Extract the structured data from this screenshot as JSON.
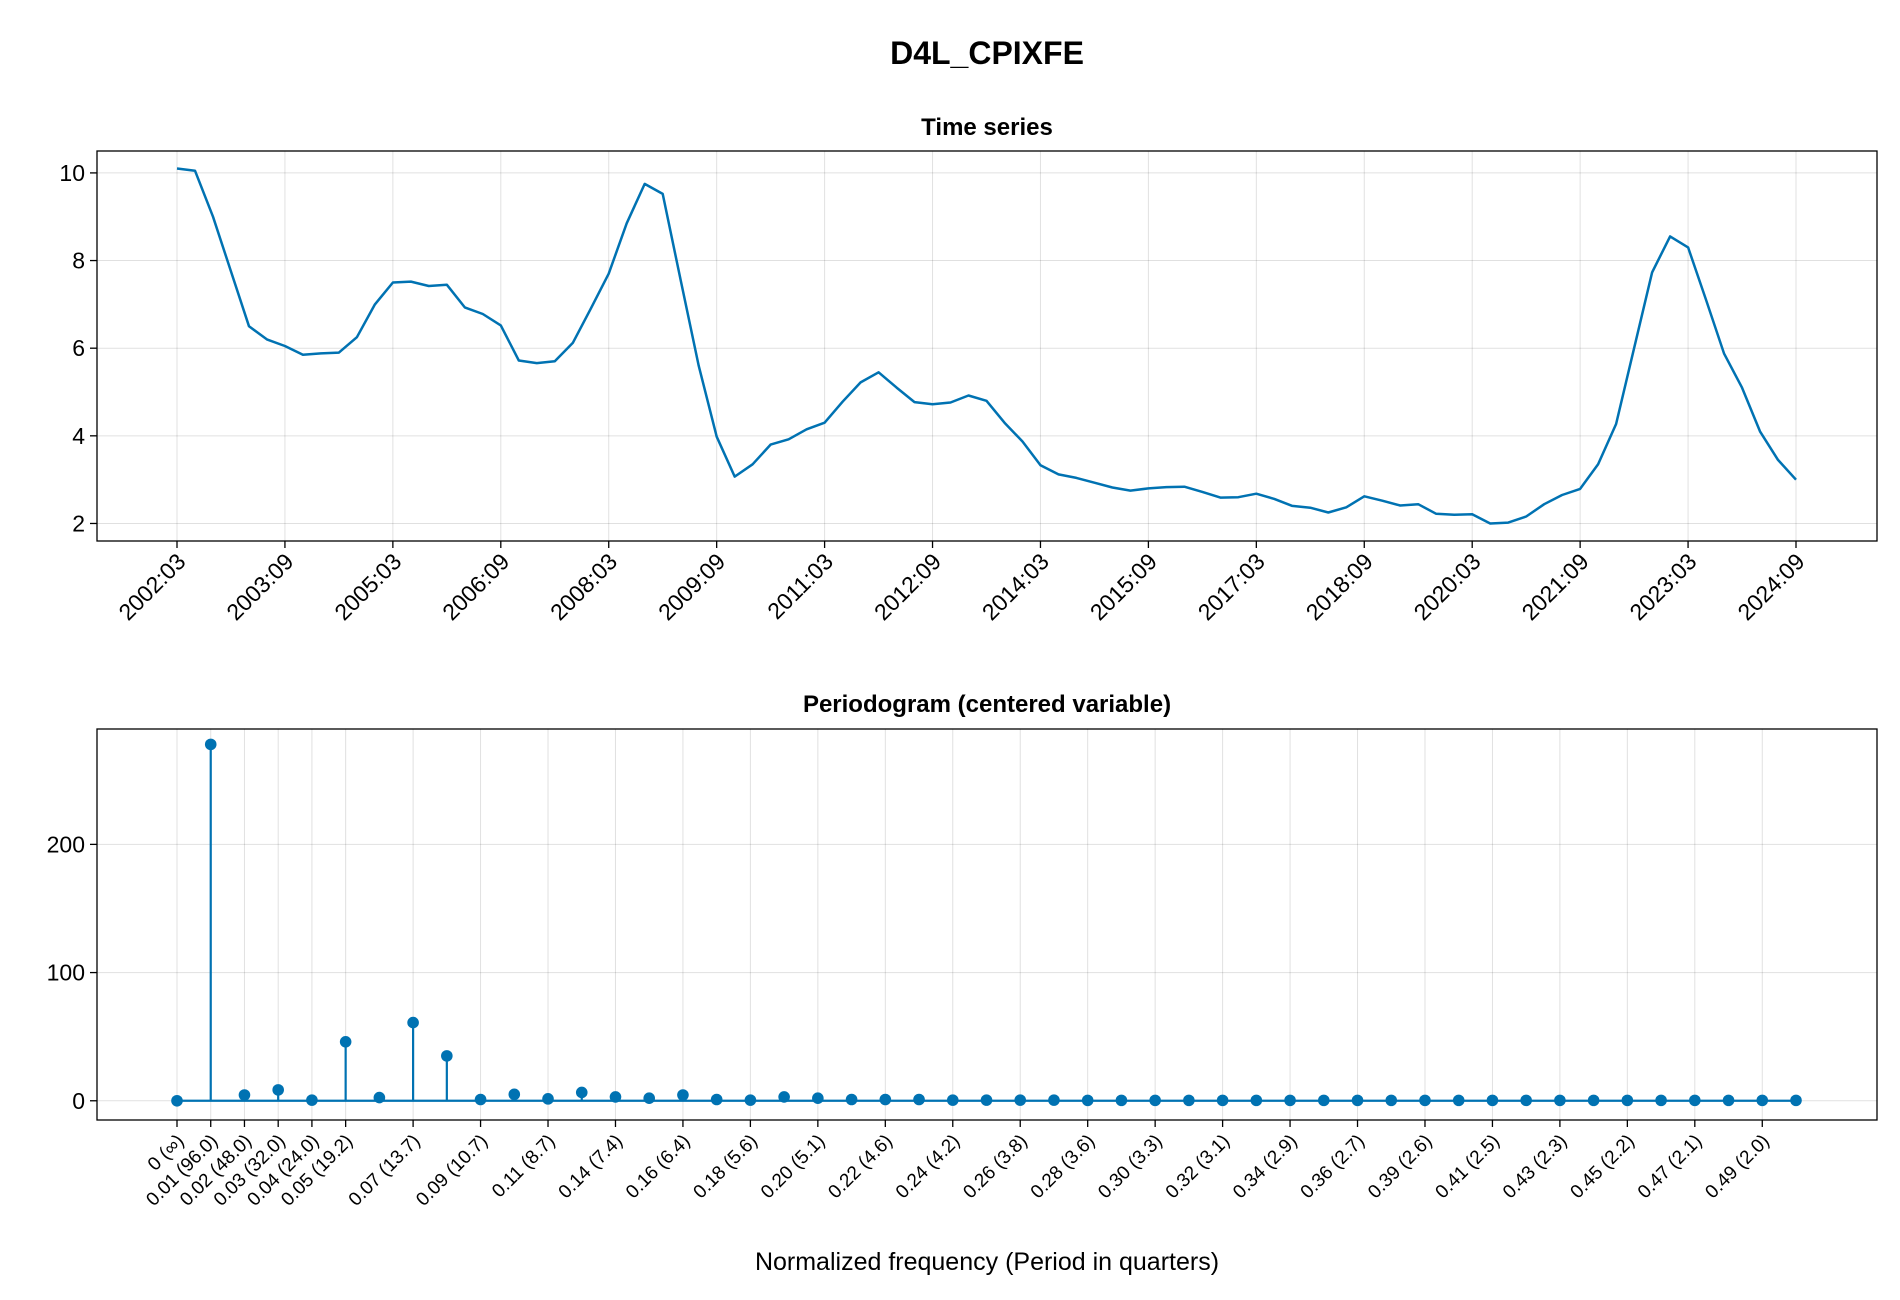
{
  "chart_data": [
    {
      "type": "line",
      "suptitle": "D4L_CPIXFE",
      "title": "Time series",
      "xlabel": "",
      "ylabel": "",
      "x_tick_labels": [
        "2002:03",
        "2003:09",
        "2005:03",
        "2006:09",
        "2008:03",
        "2009:09",
        "2011:03",
        "2012:09",
        "2014:03",
        "2015:09",
        "2017:03",
        "2018:09",
        "2020:03",
        "2021:09",
        "2023:03",
        "2024:09"
      ],
      "x_start": "2002:03",
      "x_end": "2024:09",
      "ylim": [
        1.6,
        10.5
      ],
      "y_ticks": [
        2,
        4,
        6,
        8,
        10
      ],
      "grid": true,
      "color": "#0072b2",
      "series": [
        {
          "values": [
            10.1,
            10.05,
            9.0,
            7.75,
            6.5,
            6.2,
            6.05,
            5.85,
            5.88,
            5.9,
            6.25,
            7.0,
            7.5,
            7.52,
            7.42,
            7.45,
            6.93,
            6.78,
            6.52,
            5.72,
            5.66,
            5.7,
            6.12,
            6.9,
            7.7,
            8.85,
            9.75,
            9.52,
            7.55,
            5.6,
            3.98,
            3.07,
            3.35,
            3.8,
            3.92,
            4.15,
            4.3,
            4.78,
            5.22,
            5.45,
            5.1,
            4.77,
            4.72,
            4.76,
            4.92,
            4.8,
            4.3,
            3.87,
            3.33,
            3.12,
            3.04,
            2.93,
            2.82,
            2.75,
            2.8,
            2.83,
            2.84,
            2.72,
            2.59,
            2.6,
            2.68,
            2.56,
            2.4,
            2.36,
            2.25,
            2.37,
            2.62,
            2.52,
            2.41,
            2.44,
            2.22,
            2.2,
            2.21,
            2.0,
            2.02,
            2.16,
            2.44,
            2.65,
            2.79,
            3.35,
            4.27,
            6.0,
            7.73,
            8.55,
            8.3,
            7.1,
            5.88,
            5.1,
            4.1,
            3.45,
            3.0
          ]
        }
      ]
    },
    {
      "type": "stem",
      "title": "Periodogram (centered variable)",
      "xlabel": "Normalized frequency (Period in quarters)",
      "ylabel": "",
      "x_tick_labels": [
        "0 (∞)",
        "0.01 (96.0)",
        "0.02 (48.0)",
        "0.03 (32.0)",
        "0.04 (24.0)",
        "0.05 (19.2)",
        "0.07 (13.7)",
        "0.09 (10.7)",
        "0.11 (8.7)",
        "0.14 (7.4)",
        "0.16 (6.4)",
        "0.18 (5.6)",
        "0.20 (5.1)",
        "0.22 (4.6)",
        "0.24 (4.2)",
        "0.26 (3.8)",
        "0.28 (3.6)",
        "0.30 (3.3)",
        "0.32 (3.1)",
        "0.34 (2.9)",
        "0.36 (2.7)",
        "0.39 (2.6)",
        "0.41 (2.5)",
        "0.43 (2.3)",
        "0.45 (2.2)",
        "0.47 (2.1)",
        "0.49 (2.0)"
      ],
      "x_tick_indices": [
        0,
        1,
        2,
        3,
        4,
        5,
        7,
        9,
        11,
        13,
        15,
        17,
        19,
        21,
        23,
        25,
        27,
        29,
        31,
        33,
        35,
        37,
        39,
        41,
        43,
        45,
        47
      ],
      "ylim": [
        -15,
        290
      ],
      "y_ticks": [
        0,
        100,
        200
      ],
      "grid": true,
      "color": "#0072b2",
      "series": [
        {
          "values": [
            0,
            278,
            4.5,
            8.5,
            0.5,
            46,
            2.5,
            61,
            35,
            1,
            5,
            1.5,
            6.5,
            3,
            2,
            4.5,
            1,
            0.5,
            3,
            2,
            1,
            1,
            1,
            0.5,
            0.5,
            0.5,
            0.5,
            0.3,
            0.3,
            0.3,
            0.3,
            0.3,
            0.3,
            0.3,
            0.3,
            0.3,
            0.3,
            0.3,
            0.3,
            0.3,
            0.3,
            0.3,
            0.3,
            0.3,
            0.3,
            0.3,
            0.3,
            0.3,
            0.3
          ]
        }
      ]
    }
  ]
}
